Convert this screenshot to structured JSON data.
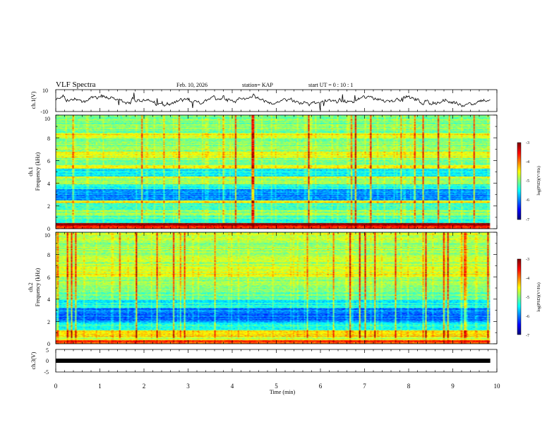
{
  "chart_data": {
    "type": "heatmap",
    "header": {
      "title": "VLF Spectra",
      "date": "Feb. 10, 2026",
      "station": "station= KAP",
      "start_ut": "start  UT =   0  : 10 : 1"
    },
    "x_axis": {
      "label": "Time  (min)",
      "range": [
        0,
        10
      ],
      "ticks": [
        "0",
        "1",
        "2",
        "3",
        "4",
        "5",
        "6",
        "7",
        "8",
        "9",
        "10"
      ],
      "data_end_min": 9.85
    },
    "panels": [
      {
        "id": "ch1-waveform",
        "type": "line",
        "ylabel": "ch.1(V)",
        "yrange": [
          -10,
          10
        ],
        "yticks": [
          "10",
          "-10"
        ]
      },
      {
        "id": "ch1-spectrogram",
        "type": "heatmap",
        "ylabel_line1": "ch.1",
        "ylabel_line2": "Frequency  (kHz)",
        "yrange_khz": [
          0,
          10
        ],
        "yticks": [
          "0",
          "2",
          "4",
          "6",
          "8",
          "10"
        ],
        "colorbar": {
          "label": "log(PSD)(V²/Hz)",
          "range": [
            -7,
            -3
          ],
          "ticks": [
            "-3",
            "-4",
            "-5",
            "-6",
            "-7"
          ]
        },
        "frequency_profile_khz": [
          {
            "from": 0.0,
            "to": 0.25,
            "level": -3.6
          },
          {
            "from": 0.25,
            "to": 0.45,
            "level": -3.2
          },
          {
            "from": 0.45,
            "to": 1.1,
            "level": -5.2
          },
          {
            "from": 1.1,
            "to": 1.6,
            "level": -4.9
          },
          {
            "from": 1.6,
            "to": 2.2,
            "level": -5.3
          },
          {
            "from": 2.2,
            "to": 2.45,
            "level": -4.5
          },
          {
            "from": 2.45,
            "to": 3.5,
            "level": -5.9
          },
          {
            "from": 3.5,
            "to": 3.9,
            "level": -5.4
          },
          {
            "from": 3.9,
            "to": 4.6,
            "level": -4.8
          },
          {
            "from": 4.6,
            "to": 5.3,
            "level": -5.6
          },
          {
            "from": 5.3,
            "to": 5.6,
            "level": -4.4
          },
          {
            "from": 5.6,
            "to": 6.2,
            "level": -5.0
          },
          {
            "from": 6.2,
            "to": 6.8,
            "level": -4.6
          },
          {
            "from": 6.8,
            "to": 8.0,
            "level": -4.9
          },
          {
            "from": 8.0,
            "to": 8.4,
            "level": -4.5
          },
          {
            "from": 8.4,
            "to": 10.0,
            "level": -5.0
          }
        ]
      },
      {
        "id": "ch2-spectrogram",
        "type": "heatmap",
        "ylabel_line1": "ch.2",
        "ylabel_line2": "Frequency  (kHz)",
        "yrange_khz": [
          0,
          10
        ],
        "yticks": [
          "0",
          "2",
          "4",
          "6",
          "8",
          "10"
        ],
        "colorbar": {
          "label": "log(PSD)(V²/Hz)",
          "range": [
            -7,
            -3
          ],
          "ticks": [
            "-3",
            "-4",
            "-5",
            "-6",
            "-7"
          ]
        },
        "frequency_profile_khz": [
          {
            "from": 0.0,
            "to": 0.3,
            "level": -3.8
          },
          {
            "from": 0.3,
            "to": 0.6,
            "level": -4.8
          },
          {
            "from": 0.6,
            "to": 1.2,
            "level": -4.4
          },
          {
            "from": 1.2,
            "to": 1.9,
            "level": -5.5
          },
          {
            "from": 1.9,
            "to": 3.2,
            "level": -6.0
          },
          {
            "from": 3.2,
            "to": 3.9,
            "level": -5.5
          },
          {
            "from": 3.9,
            "to": 4.6,
            "level": -5.1
          },
          {
            "from": 4.6,
            "to": 6.0,
            "level": -4.9
          },
          {
            "from": 6.0,
            "to": 7.0,
            "level": -4.6
          },
          {
            "from": 7.0,
            "to": 10.0,
            "level": -4.8
          }
        ]
      },
      {
        "id": "ch3-waveform",
        "type": "line",
        "ylabel": "ch.3(V)",
        "yrange": [
          -5,
          5
        ],
        "yticks": [
          "5",
          "0",
          "-5"
        ],
        "trace_level_v": -0.5
      }
    ]
  }
}
